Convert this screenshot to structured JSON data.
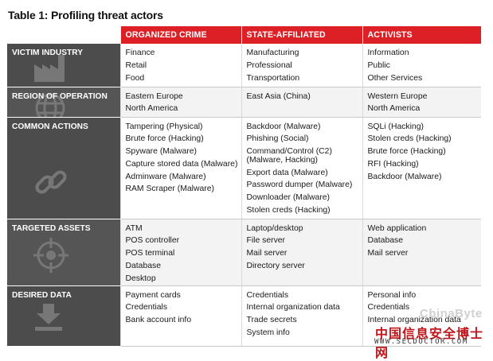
{
  "title": "Table 1: Profiling threat actors",
  "columns": [
    "ORGANIZED CRIME",
    "STATE-AFFILIATED",
    "ACTIVISTS"
  ],
  "rows": [
    {
      "label": "VICTIM INDUSTRY",
      "icon": "factory-icon",
      "cells": [
        [
          "Finance",
          "Retail",
          "Food"
        ],
        [
          "Manufacturing",
          "Professional",
          "Transportation"
        ],
        [
          "Information",
          "Public",
          "Other Services"
        ]
      ]
    },
    {
      "label": "REGION OF OPERATION",
      "icon": "globe-icon",
      "cells": [
        [
          "Eastern Europe",
          "North America"
        ],
        [
          "East Asia (China)"
        ],
        [
          "Western Europe",
          "North America"
        ]
      ]
    },
    {
      "label": "COMMON ACTIONS",
      "icon": "chain-link-icon",
      "cells": [
        [
          "Tampering (Physical)",
          "Brute force (Hacking)",
          "Spyware (Malware)",
          "Capture stored data (Malware)",
          "Adminware (Malware)",
          "RAM Scraper (Malware)"
        ],
        [
          "Backdoor (Malware)",
          "Phishing (Social)",
          "Command/Control (C2)",
          "(Malware, Hacking)",
          "Export data (Malware)",
          "Password dumper (Malware)",
          "Downloader (Malware)",
          "Stolen creds (Hacking)"
        ],
        [
          "SQLi (Hacking)",
          "Stolen creds (Hacking)",
          "Brute force (Hacking)",
          "RFI (Hacking)",
          "Backdoor (Malware)"
        ]
      ]
    },
    {
      "label": "TARGETED ASSETS",
      "icon": "crosshair-icon",
      "cells": [
        [
          "ATM",
          "POS controller",
          "POS terminal",
          "Database",
          "Desktop"
        ],
        [
          "Laptop/desktop",
          "File server",
          "Mail server",
          "Directory server"
        ],
        [
          "Web application",
          "Database",
          "Mail server"
        ]
      ]
    },
    {
      "label": "DESIRED DATA",
      "icon": "download-icon",
      "cells": [
        [
          "Payment cards",
          "Credentials",
          "Bank account info"
        ],
        [
          "Credentials",
          "Internal organization data",
          "Trade secrets",
          "System info"
        ],
        [
          "Personal info",
          "Credentials",
          "Internal organization data"
        ]
      ]
    }
  ],
  "watermark": {
    "brand": "ChinaByte",
    "site_cn": "中国信息安全博士网",
    "url": "WWW.SECDOCTOR.COM"
  }
}
